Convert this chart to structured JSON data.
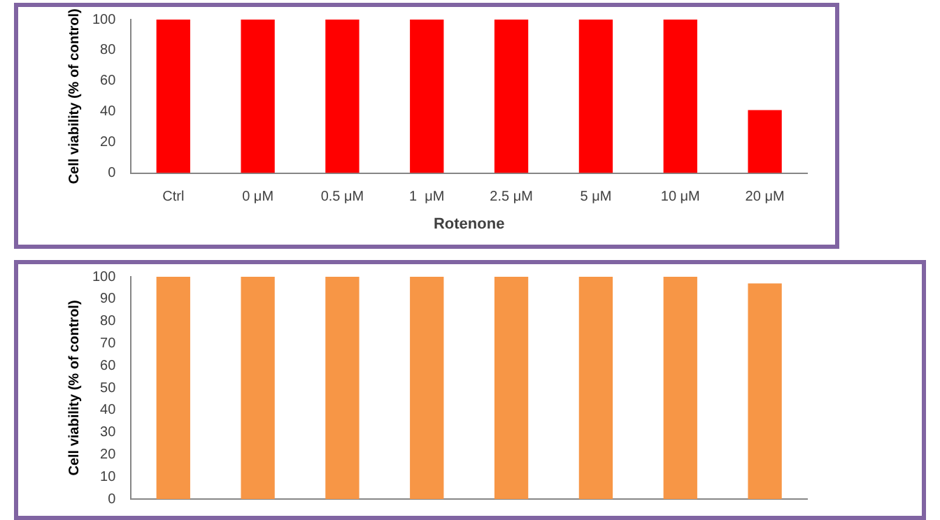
{
  "chart_data": [
    {
      "type": "bar",
      "xlabel": "Rotenone",
      "ylabel": "Cell viability (% of control)",
      "categories": [
        "Ctrl",
        "0 μM",
        "0.5 μM",
        "1  μM",
        "2.5 μM",
        "5 μM",
        "10 μM",
        "20 μM"
      ],
      "values": [
        100,
        100,
        100,
        100,
        100,
        100,
        100,
        41
      ],
      "color": "#ff0000",
      "ylim": [
        0,
        100
      ],
      "yticks": [
        0,
        20,
        40,
        60,
        80,
        100
      ],
      "grid": false,
      "legend": false
    },
    {
      "type": "bar",
      "ylabel": "Cell viability (% of control)",
      "categories": [
        null,
        null,
        null,
        null,
        null,
        null,
        null,
        null
      ],
      "values": [
        100,
        100,
        100,
        100,
        100,
        100,
        100,
        97
      ],
      "color": "#f79646",
      "ylim": [
        0,
        100
      ],
      "yticks": [
        0,
        10,
        20,
        30,
        40,
        50,
        60,
        70,
        80,
        90,
        100
      ],
      "grid": false,
      "legend": false,
      "tick_labels": "y"
    }
  ]
}
